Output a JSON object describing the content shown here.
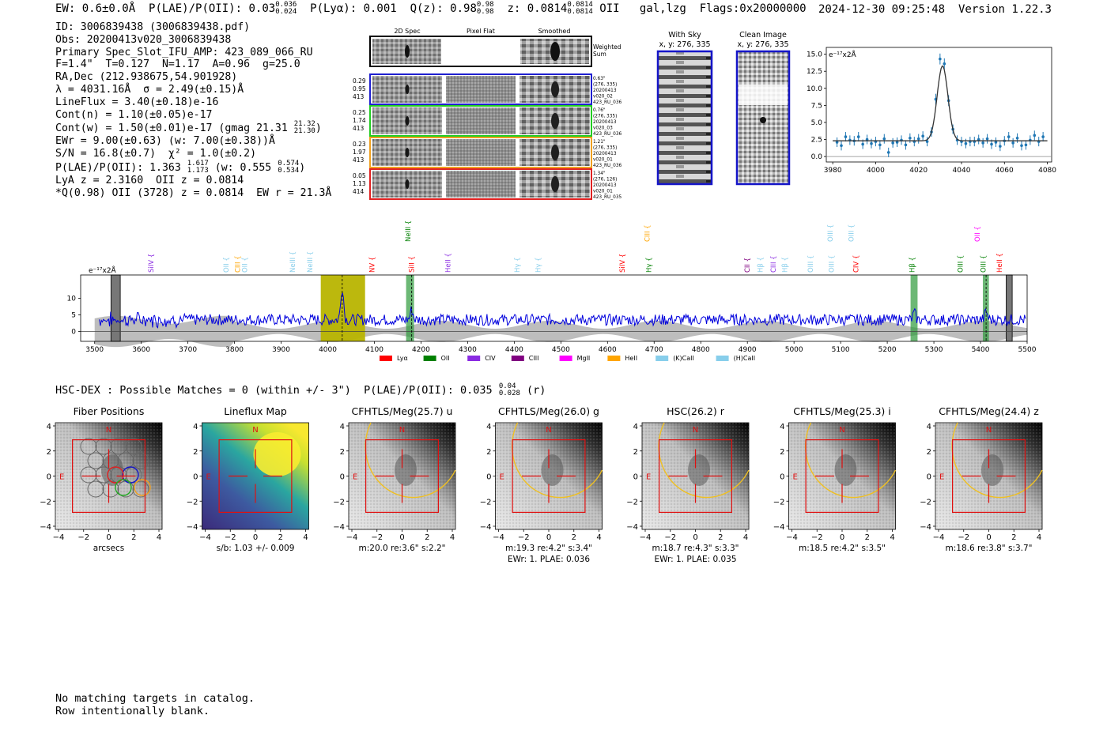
{
  "header": {
    "ew_text": "EW: 0.6±0.0Å",
    "plae_label": "P(LAE)/P(OII):",
    "plae_value": "0.03",
    "plae_hi": "0.036",
    "plae_lo": "0.024",
    "plya_text": "P(Lyα): 0.001",
    "qz_label": "Q(z):",
    "qz_value": "0.98",
    "qz_hi": "0.98",
    "qz_lo": "0.98",
    "z_label": "z:",
    "z_value": "0.0814",
    "z_hi": "0.0814",
    "z_lo": "0.0814",
    "z_line": "OII",
    "classification": "gal,lzg",
    "flags": "Flags:0x20000000",
    "timestamp": "2024-12-30 09:25:48",
    "version": "Version 1.22.3"
  },
  "info": {
    "line1": "ID: 3006839438 (3006839438.pdf)",
    "line2": "Obs: 20200413v020_3006839438",
    "line3": "Primary Spec_Slot_IFU_AMP: 423_089_066_RU",
    "line4": "F=1.4\"  T=0.127  N=1.17  A=0.96  g=25.0",
    "line5": "RA,Dec (212.938675,54.901928)",
    "line6": "λ = 4031.16Å  σ = 2.49(±0.15)Å",
    "line7": "LineFlux = 3.40(±0.18)e-16",
    "line8": "Cont(n) = 1.10(±0.05)e-17",
    "line9a": "Cont(w) = 1.50(±0.01)e-17 (gmag 21.31",
    "line9_hi": "21.32",
    "line9_lo": "21.30",
    "line9b": ")",
    "line10": "EWr = 9.00(±0.63) (w: 7.00(±0.38))Å",
    "line11": "S/N = 16.8(±0.7)  χ² = 1.0(±0.2)",
    "line12a": "P(LAE)/P(OII): 1.363",
    "line12_hi": "1.617",
    "line12_lo": "1.173",
    "line12b": " (w: 0.555",
    "line12_hi2": "0.574",
    "line12_lo2": "0.534",
    "line12c": ")",
    "line13": "LyA z = 2.3160  OII z = 0.0814",
    "line14": "*Q(0.98) OII (3728) z = 0.0814  EW r = 21.3Å"
  },
  "cutouts": {
    "col_headers": [
      "2D Spec",
      "Pixel Flat",
      "Smoothed"
    ],
    "weighted_label": "Weighted Sum",
    "rows": [
      {
        "left": [
          "0.29",
          "0.95",
          "413"
        ],
        "right": [
          "0.63\"",
          "(276, 335)",
          "20200413",
          "v020_02",
          "423_RU_036"
        ],
        "color": "#1f1fd0"
      },
      {
        "left": [
          "0.25",
          "1.74",
          "413"
        ],
        "right": [
          "0.76\"",
          "(276, 335)",
          "20200413",
          "v020_03",
          "423_RU_036"
        ],
        "color": "#22cc22"
      },
      {
        "left": [
          "0.23",
          "1.97",
          "413"
        ],
        "right": [
          "1.21\"",
          "(276, 335)",
          "20200413",
          "v020_01",
          "423_RU_036"
        ],
        "color": "#f0a020"
      },
      {
        "left": [
          "0.05",
          "1.13",
          "414"
        ],
        "right": [
          "1.34\"",
          "(276, 126)",
          "20200413",
          "v020_01",
          "423_RU_035"
        ],
        "color": "#e02020"
      }
    ]
  },
  "sky": {
    "with_sky_title": "With Sky",
    "with_sky_coords": "x, y: 276, 335",
    "clean_title": "Clean Image",
    "clean_coords": "x, y: 276, 335"
  },
  "zoom_chart": {
    "unit_label": "e⁻¹⁷x2Å",
    "xticks": [
      "3980",
      "4000",
      "4020",
      "4040",
      "4060",
      "4080"
    ],
    "yticks": [
      "0.0",
      "2.5",
      "5.0",
      "7.5",
      "10.0",
      "12.5",
      "15.0"
    ]
  },
  "chart_data": [
    {
      "type": "scatter",
      "title": "",
      "xlabel": "",
      "ylabel": "e⁻¹⁷x2Å",
      "xlim": [
        3977,
        4082
      ],
      "ylim": [
        -0.8,
        16.0
      ],
      "series": [
        {
          "name": "",
          "x": [
            3982,
            3984,
            3986,
            3988,
            3990,
            3992,
            3994,
            3996,
            3998,
            4000,
            4002,
            4004,
            4006,
            4008,
            4010,
            4012,
            4014,
            4016,
            4018,
            4020,
            4022,
            4024,
            4026,
            4028,
            4030,
            4032,
            4034,
            4036,
            4038,
            4040,
            4042,
            4044,
            4046,
            4048,
            4050,
            4052,
            4054,
            4056,
            4058,
            4060,
            4062,
            4064,
            4066,
            4068,
            4070,
            4072,
            4074,
            4076,
            4078
          ],
          "y": [
            2.1,
            1.6,
            2.9,
            2.4,
            2.3,
            2.9,
            1.8,
            2.5,
            1.9,
            2.2,
            1.7,
            2.6,
            0.6,
            2.0,
            2.1,
            2.4,
            1.7,
            2.7,
            2.2,
            2.6,
            3.0,
            2.2,
            3.6,
            8.4,
            14.3,
            13.6,
            8.2,
            4.0,
            2.4,
            2.2,
            1.9,
            2.2,
            2.2,
            2.5,
            2.0,
            2.6,
            1.8,
            2.1,
            1.5,
            2.3,
            2.9,
            2.0,
            2.7,
            1.6,
            1.7,
            2.4,
            3.1,
            2.2,
            2.9
          ],
          "err": [
            0.7,
            0.7,
            0.7,
            0.7,
            0.7,
            0.7,
            0.7,
            0.7,
            0.7,
            0.7,
            0.7,
            0.7,
            0.7,
            0.7,
            0.7,
            0.7,
            0.7,
            0.7,
            0.7,
            0.7,
            0.7,
            0.7,
            0.7,
            0.8,
            0.8,
            0.8,
            0.8,
            0.7,
            0.7,
            0.7,
            0.7,
            0.7,
            0.7,
            0.7,
            0.7,
            0.7,
            0.7,
            0.7,
            0.7,
            0.7,
            0.7,
            0.7,
            0.7,
            0.7,
            0.7,
            0.7,
            0.7,
            0.7,
            0.7
          ]
        }
      ],
      "model_fit": {
        "center": 4031.16,
        "sigma": 2.49,
        "amplitude": 11.0,
        "continuum": 2.3
      },
      "grid": false
    },
    {
      "type": "line",
      "title": "",
      "xlabel": "",
      "ylabel": "e⁻¹⁷x2Å",
      "xlim": [
        3470,
        5500
      ],
      "ylim": [
        -3,
        17
      ],
      "xticks": [
        3500,
        3600,
        3700,
        3800,
        3900,
        4000,
        4100,
        4200,
        4300,
        4400,
        4500,
        4600,
        4700,
        4800,
        4900,
        5000,
        5100,
        5200,
        5300,
        5400,
        5500
      ],
      "yticks": [
        0,
        5,
        10
      ],
      "continuum_level": 3.5,
      "emission_line": {
        "center": 4031,
        "peak": 13.5,
        "sigma": 3
      },
      "highlight_band": [
        3985,
        4080
      ],
      "green_bands": [
        [
          4168,
          4185
        ],
        [
          5250,
          5265
        ],
        [
          5405,
          5418
        ]
      ],
      "gray_bands": [
        [
          3535,
          3555
        ],
        [
          5455,
          5468
        ]
      ],
      "line_markers": [
        {
          "label": "SiIV",
          "x": 3626,
          "color": "#8a2be2",
          "row": 1
        },
        {
          "label": "OII",
          "x": 3787,
          "color": "#87ceeb",
          "row": 1
        },
        {
          "label": "CIII",
          "x": 3812,
          "color": "#ffa500",
          "row": 1
        },
        {
          "label": "OII",
          "x": 3827,
          "color": "#87ceeb",
          "row": 1
        },
        {
          "label": "NeIII",
          "x": 3930,
          "color": "#87ceeb",
          "row": 1
        },
        {
          "label": "NeIII",
          "x": 3967,
          "color": "#87ceeb",
          "row": 1
        },
        {
          "label": "NV",
          "x": 4100,
          "color": "#ff0000",
          "row": 1
        },
        {
          "label": "NeIII",
          "x": 4177,
          "color": "#008000",
          "row": 0
        },
        {
          "label": "SiII",
          "x": 4185,
          "color": "#ff0000",
          "row": 1
        },
        {
          "label": "HeII",
          "x": 4263,
          "color": "#8a2be2",
          "row": 1
        },
        {
          "label": "Hγ",
          "x": 4411,
          "color": "#87ceeb",
          "row": 1
        },
        {
          "label": "Hγ",
          "x": 4456,
          "color": "#87ceeb",
          "row": 1
        },
        {
          "label": "SiIV",
          "x": 4637,
          "color": "#ff0000",
          "row": 1
        },
        {
          "label": "CIII",
          "x": 4690,
          "color": "#ffa500",
          "row": 0
        },
        {
          "label": "Hγ",
          "x": 4694,
          "color": "#008000",
          "row": 1
        },
        {
          "label": "CII",
          "x": 4905,
          "color": "#800080",
          "row": 1
        },
        {
          "label": "Hβ",
          "x": 4933,
          "color": "#87ceeb",
          "row": 1
        },
        {
          "label": "CIII",
          "x": 4961,
          "color": "#8a2be2",
          "row": 1
        },
        {
          "label": "Hβ",
          "x": 4985,
          "color": "#87ceeb",
          "row": 1
        },
        {
          "label": "OIII",
          "x": 5040,
          "color": "#87ceeb",
          "row": 1
        },
        {
          "label": "OIII",
          "x": 5083,
          "color": "#87ceeb",
          "row": 0
        },
        {
          "label": "OIII",
          "x": 5085,
          "color": "#87ceeb",
          "row": 1
        },
        {
          "label": "OIII",
          "x": 5128,
          "color": "#87ceeb",
          "row": 0
        },
        {
          "label": "CIV",
          "x": 5138,
          "color": "#ff0000",
          "row": 1
        },
        {
          "label": "Hβ",
          "x": 5258,
          "color": "#008000",
          "row": 1
        },
        {
          "label": "OIII",
          "x": 5362,
          "color": "#008000",
          "row": 1
        },
        {
          "label": "OII",
          "x": 5398,
          "color": "#ff00ff",
          "row": 0
        },
        {
          "label": "OIII",
          "x": 5411,
          "color": "#008000",
          "row": 1
        },
        {
          "label": "HeII",
          "x": 5446,
          "color": "#ff0000",
          "row": 1
        }
      ],
      "legend": [
        {
          "label": "Lyα",
          "color": "#ff0000"
        },
        {
          "label": "OII",
          "color": "#008000"
        },
        {
          "label": "CIV",
          "color": "#8a2be2"
        },
        {
          "label": "CIII",
          "color": "#800080"
        },
        {
          "label": "MgII",
          "color": "#ff00ff"
        },
        {
          "label": "HeII",
          "color": "#ffa500"
        },
        {
          "label": "(K)CaII",
          "color": "#87ceeb"
        },
        {
          "label": "(H)CaII",
          "color": "#87ceeb"
        }
      ],
      "legend_position": "bottom"
    }
  ],
  "match_line": {
    "text_a": "HSC-DEX : Possible Matches = 0 (within +/- 3\")  P(LAE)/P(OII): 0.035",
    "hi": "0.04",
    "lo": "0.028",
    "text_b": " (r)"
  },
  "thumbnails": {
    "axis_ticks": [
      "−4",
      "−2",
      "0",
      "2",
      "4"
    ],
    "yaxis_ticks": [
      "4",
      "2",
      "0",
      "−2",
      "−4"
    ],
    "north_label": "N",
    "east_label": "E",
    "panels": [
      {
        "title": "Fiber Positions",
        "caption1": "arcsecs",
        "caption2": ""
      },
      {
        "title": "Lineflux Map",
        "caption1": "s/b: 1.03 +/- 0.009",
        "caption2": ""
      },
      {
        "title": "CFHTLS/Meg(25.7) u",
        "caption1": "m:20.0  re:3.6\"  s:2.2\"",
        "caption2": ""
      },
      {
        "title": "CFHTLS/Meg(26.0) g",
        "caption1": "m:19.3  re:4.2\"  s:3.4\"",
        "caption2": "EWr: 1. PLAE: 0.036"
      },
      {
        "title": "HSC(26.2) r",
        "caption1": "m:18.7  re:4.3\"  s:3.3\"",
        "caption2": "EWr: 1. PLAE: 0.035"
      },
      {
        "title": "CFHTLS/Meg(25.3) i",
        "caption1": "m:18.5  re:4.2\"  s:3.5\"",
        "caption2": ""
      },
      {
        "title": "CFHTLS/Meg(24.4) z",
        "caption1": "m:18.6  re:3.8\"  s:3.7\"",
        "caption2": ""
      }
    ]
  },
  "footer": {
    "line1": "No matching targets in catalog.",
    "line2": "Row intentionally blank."
  }
}
